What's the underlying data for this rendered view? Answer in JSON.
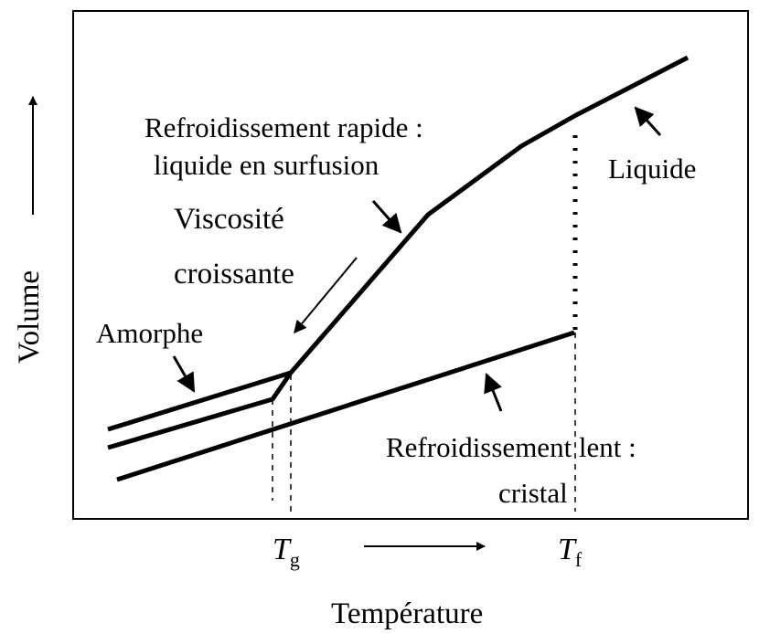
{
  "diagram": {
    "labels": {
      "rapid_line1": "Refroidissement rapide :",
      "rapid_line2": "liquide en surfusion",
      "viscosity_line1": "Viscosité",
      "viscosity_line2": "croissante",
      "amorphous": "Amorphe",
      "liquid": "Liquide",
      "slow_line1": "Refroidissement lent :",
      "slow_line2": "cristal"
    },
    "axes": {
      "y_label": "Volume",
      "x_label": "Température",
      "tg_symbol": "T",
      "tg_subscript": "g",
      "tf_symbol": "T",
      "tf_subscript": "f"
    }
  }
}
